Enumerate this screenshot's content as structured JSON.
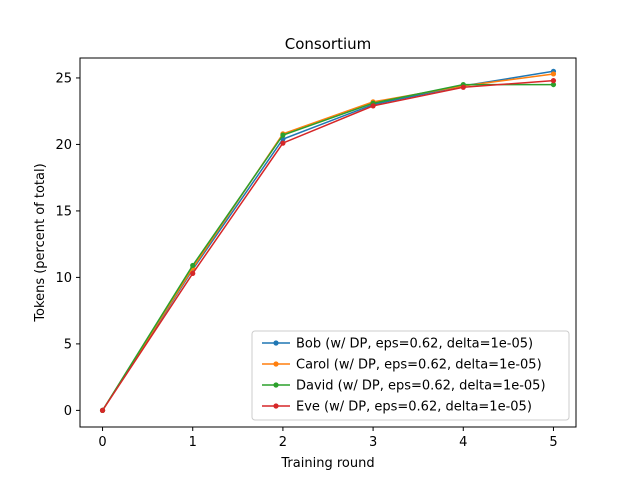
{
  "chart_data": {
    "type": "line",
    "title": "Consortium",
    "xlabel": "Training round",
    "ylabel": "Tokens (percent of total)",
    "x": [
      0,
      1,
      2,
      3,
      4,
      5
    ],
    "xlim": [
      -0.25,
      5.25
    ],
    "ylim": [
      -1.25,
      26.5
    ],
    "xticks": [
      0,
      1,
      2,
      3,
      4,
      5
    ],
    "yticks": [
      0,
      5,
      10,
      15,
      20,
      25
    ],
    "grid": false,
    "legend_position": "lower-right",
    "series": [
      {
        "name": "Bob (w/ DP, eps=0.62, delta=1e-05)",
        "color": "#1f77b4",
        "values": [
          0,
          10.6,
          20.4,
          23.0,
          24.4,
          25.5
        ]
      },
      {
        "name": "Carol (w/ DP, eps=0.62, delta=1e-05)",
        "color": "#ff7f0e",
        "values": [
          0,
          10.7,
          20.8,
          23.2,
          24.4,
          25.3
        ]
      },
      {
        "name": "David (w/ DP, eps=0.62, delta=1e-05)",
        "color": "#2ca02c",
        "values": [
          0,
          10.9,
          20.7,
          23.1,
          24.5,
          24.5
        ]
      },
      {
        "name": "Eve (w/ DP, eps=0.62, delta=1e-05)",
        "color": "#d62728",
        "values": [
          0,
          10.3,
          20.1,
          22.9,
          24.3,
          24.8
        ]
      }
    ]
  }
}
